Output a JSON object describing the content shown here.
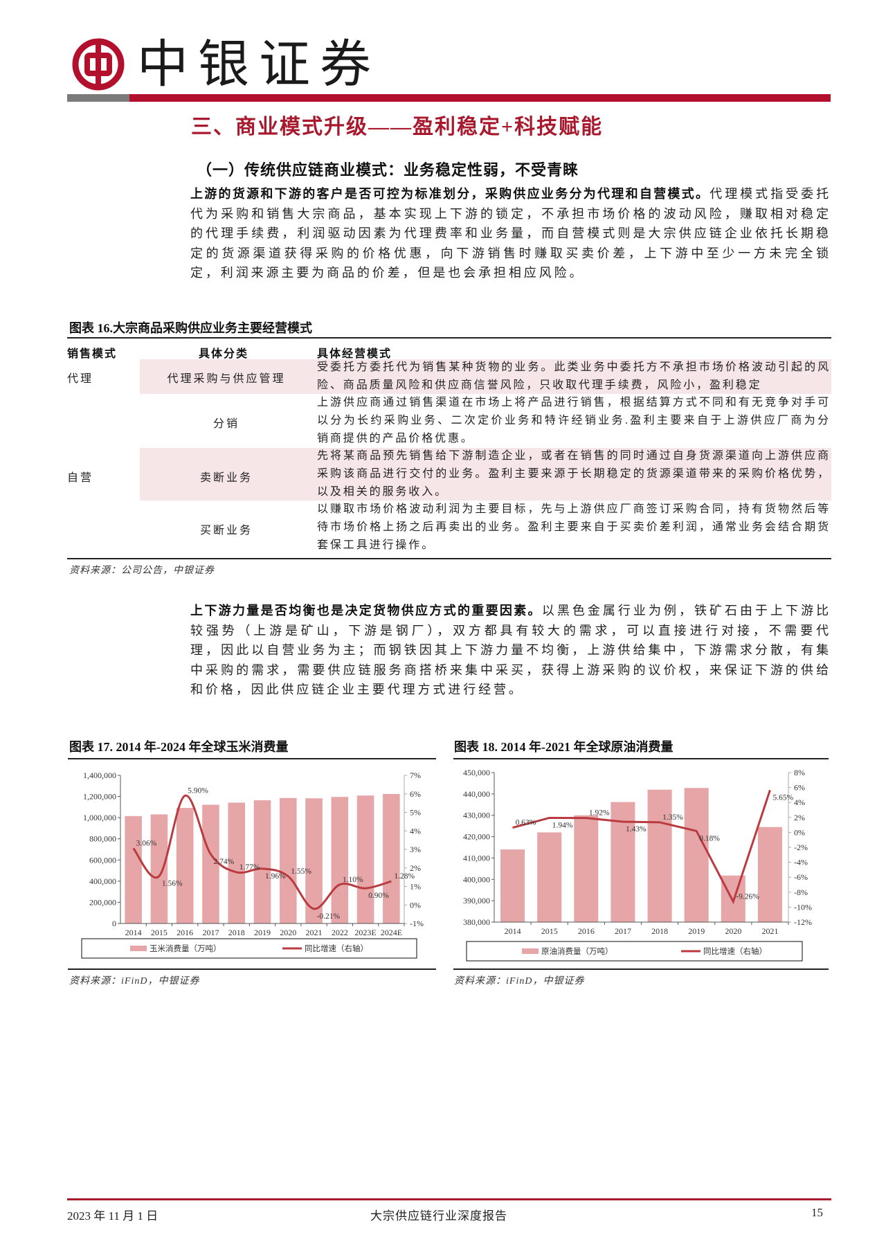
{
  "brand": {
    "name": "中银证券",
    "logo_icon": "bank-of-china-coin-icon",
    "color": "#b3102e"
  },
  "section_title": "三、商业模式升级——盈利稳定+科技赋能",
  "sub_title": "（一）传统供应链商业模式：业务稳定性弱，不受青睐",
  "para1": {
    "bold": "上游的货源和下游的客户是否可控为标准划分，采购供应业务分为代理和自营模式。",
    "rest": "代理模式指受委托代为采购和销售大宗商品，基本实现上下游的锁定，不承担市场价格的波动风险，赚取相对稳定的代理手续费，利润驱动因素为代理费率和业务量，而自营模式则是大宗供应链企业依托长期稳定的货源渠道获得采购的价格优惠，向下游销售时赚取买卖价差，上下游中至少一方未完全锁定，利润来源主要为商品的价差，但是也会承担相应风险。"
  },
  "table": {
    "caption": "图表 16.大宗商品采购供应业务主要经营模式",
    "headers": [
      "销售模式",
      "具体分类",
      "具体经营模式"
    ],
    "rows": [
      {
        "mode": "代理",
        "category": "代理采购与供应管理",
        "desc": "受委托方委托代为销售某种货物的业务。此类业务中委托方不承担市场价格波动引起的风险、商品质量风险和供应商信誉风险，只收取代理手续费，风险小，盈利稳定"
      },
      {
        "mode": "",
        "category": "分销",
        "desc": "上游供应商通过销售渠道在市场上将产品进行销售，根据结算方式不同和有无竞争对手可以分为长约采购业务、二次定价业务和特许经销业务.盈利主要来自于上游供应厂商为分销商提供的产品价格优惠。"
      },
      {
        "mode": "自营",
        "category": "卖断业务",
        "desc": "先将某商品预先销售给下游制造企业，或者在销售的同时通过自身货源渠道向上游供应商采购该商品进行交付的业务。盈利主要来源于长期稳定的货源渠道带来的采购价格优势，以及相关的服务收入。"
      },
      {
        "mode": "",
        "category": "买断业务",
        "desc": "以赚取市场价格波动利润为主要目标，先与上游供应厂商签订采购合同，持有货物然后等待市场价格上扬之后再卖出的业务。盈利主要来自于买卖价差利润，通常业务会结合期货套保工具进行操作。"
      }
    ],
    "source": "资料来源：公司公告，中银证券"
  },
  "para2": {
    "bold": "上下游力量是否均衡也是决定货物供应方式的重要因素。",
    "rest": "以黑色金属行业为例，铁矿石由于上下游比较强势（上游是矿山，下游是钢厂），双方都具有较大的需求，可以直接进行对接，不需要代理，因此以自营业务为主；而钢铁因其上下游力量不均衡，上游供给集中，下游需求分散，有集中采购的需求，需要供应链服务商搭桥来集中采买，获得上游采购的议价权，来保证下游的供给和价格，因此供应链企业主要代理方式进行经营。"
  },
  "chart_data": [
    {
      "type": "bar+line",
      "title": "图表 17. 2014 年-2024 年全球玉米消费量",
      "categories": [
        "2014",
        "2015",
        "2016",
        "2017",
        "2018",
        "2019",
        "2020",
        "2021",
        "2022",
        "2023E",
        "2024E"
      ],
      "series": [
        {
          "name": "玉米消费量（万吨）",
          "type": "bar",
          "axis": "left",
          "color": "#e6a6a8",
          "values": [
            1015000,
            1031000,
            1092000,
            1122000,
            1142000,
            1164000,
            1186000,
            1183000,
            1196000,
            1209000,
            1224000
          ]
        },
        {
          "name": "同比增速（右轴）",
          "type": "line",
          "axis": "right",
          "smooth": true,
          "color": "#b93a3f",
          "values": [
            3.06,
            1.56,
            5.9,
            2.74,
            1.77,
            1.96,
            1.55,
            -0.21,
            1.1,
            0.9,
            1.28
          ],
          "labels": [
            "3.06%",
            "1.56%",
            "5.90%",
            "2.74%",
            "1.77%",
            "1.96%",
            "1.55%",
            "-0.21%",
            "1.10%",
            "0.90%",
            "1.28%"
          ]
        }
      ],
      "left_axis": {
        "min": 0,
        "max": 1400000,
        "step": 200000,
        "ticks": [
          "0",
          "200,000",
          "400,000",
          "600,000",
          "800,000",
          "1,000,000",
          "1,200,000",
          "1,400,000"
        ]
      },
      "right_axis": {
        "min": -1,
        "max": 7,
        "step": 1,
        "ticks": [
          "-1%",
          "0%",
          "1%",
          "2%",
          "3%",
          "4%",
          "5%",
          "6%",
          "7%"
        ]
      },
      "legend": "bottom",
      "grid": false,
      "source": "资料来源：iFinD，中银证券"
    },
    {
      "type": "bar+line",
      "title": "图表 18. 2014 年-2021 年全球原油消费量",
      "categories": [
        "2014",
        "2015",
        "2016",
        "2017",
        "2018",
        "2019",
        "2020",
        "2021"
      ],
      "series": [
        {
          "name": "原油消费量（万吨）",
          "type": "bar",
          "axis": "left",
          "color": "#e6a6a8",
          "values": [
            414000,
            422000,
            430000,
            436200,
            442000,
            442800,
            401800,
            424500
          ]
        },
        {
          "name": "同比增速（右轴）",
          "type": "line",
          "axis": "right",
          "smooth": false,
          "color": "#b93a3f",
          "values": [
            0.63,
            1.94,
            1.92,
            1.43,
            1.35,
            0.18,
            -9.26,
            5.65
          ],
          "labels": [
            "0.63%",
            "1.94%",
            "1.92%",
            "1.43%",
            "1.35%",
            "0.18%",
            "-9.26%",
            "5.65%"
          ]
        }
      ],
      "left_axis": {
        "min": 380000,
        "max": 450000,
        "step": 10000,
        "ticks": [
          "380,000",
          "390,000",
          "400,000",
          "410,000",
          "420,000",
          "430,000",
          "440,000",
          "450,000"
        ]
      },
      "right_axis": {
        "min": -12,
        "max": 8,
        "step": 2,
        "ticks": [
          "-12%",
          "-10%",
          "-8%",
          "-6%",
          "-4%",
          "-2%",
          "0%",
          "2%",
          "4%",
          "6%",
          "8%"
        ]
      },
      "legend": "bottom",
      "grid": false,
      "source": "资料来源：iFinD，中银证券"
    }
  ],
  "footer": {
    "date": "2023 年 11 月 1 日",
    "report": "大宗供应链行业深度报告",
    "page": "15"
  }
}
